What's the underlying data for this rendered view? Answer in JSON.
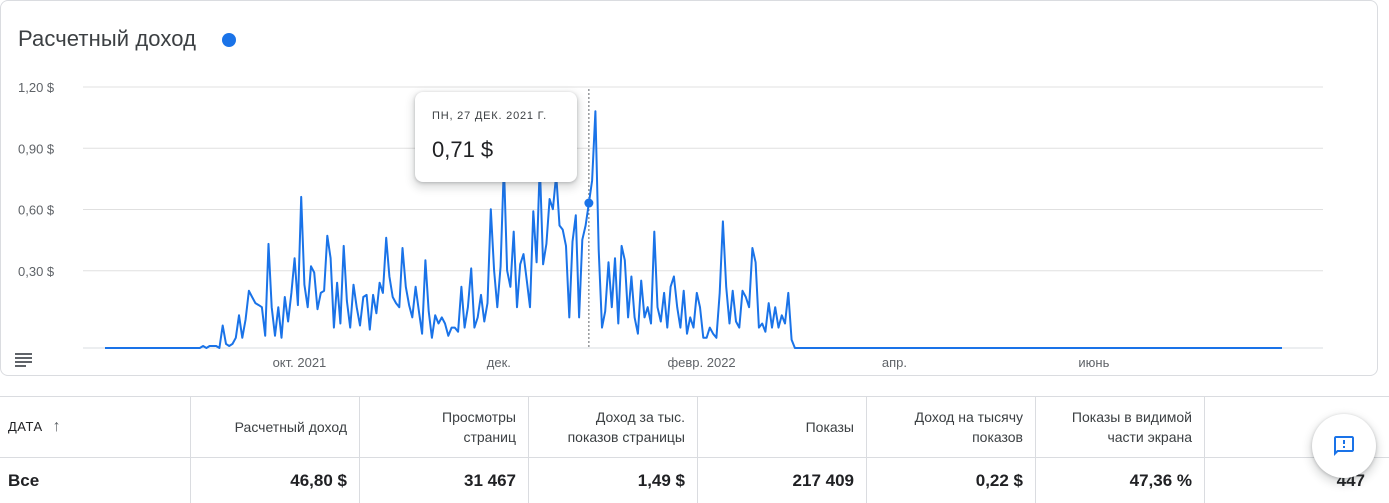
{
  "card": {
    "title": "Расчетный доход",
    "series_color": "#1a73e8",
    "menu_icon": "list-icon"
  },
  "tooltip": {
    "date": "ПН, 27 ДЕК. 2021 Г.",
    "value": "0,71 $"
  },
  "chart_data": {
    "type": "line",
    "title": "",
    "xlabel": "",
    "ylabel": "",
    "ylim": [
      0,
      1.2
    ],
    "xlim": [
      "2021-08-01",
      "2022-07-27"
    ],
    "y_ticks": [
      "1,20 $",
      "0,90 $",
      "0,60 $",
      "0,30 $"
    ],
    "y_tick_values": [
      1.2,
      0.9,
      0.6,
      0.3
    ],
    "x_ticks": [
      {
        "label": "окт. 2021",
        "date": "2021-10-01"
      },
      {
        "label": "дек.",
        "date": "2021-12-01"
      },
      {
        "label": "февр. 2022",
        "date": "2022-02-01"
      },
      {
        "label": "апр.",
        "date": "2022-04-01"
      },
      {
        "label": "июнь",
        "date": "2022-06-01"
      }
    ],
    "grid": true,
    "highlight": {
      "date": "2021-12-27",
      "value": 0.71
    },
    "series": [
      {
        "color": "#1a73e8",
        "points": [
          [
            "2021-08-01",
            0
          ],
          [
            "2021-08-30",
            0
          ],
          [
            "2021-08-31",
            0.01
          ],
          [
            "2021-09-01",
            0
          ],
          [
            "2021-09-02",
            0.01
          ],
          [
            "2021-09-04",
            0.01
          ],
          [
            "2021-09-05",
            0
          ],
          [
            "2021-09-06",
            0.11
          ],
          [
            "2021-09-07",
            0.02
          ],
          [
            "2021-09-08",
            0.01
          ],
          [
            "2021-09-09",
            0.02
          ],
          [
            "2021-09-10",
            0.05
          ],
          [
            "2021-09-11",
            0.16
          ],
          [
            "2021-09-12",
            0.05
          ],
          [
            "2021-09-13",
            0.14
          ],
          [
            "2021-09-14",
            0.28
          ],
          [
            "2021-09-15",
            0.25
          ],
          [
            "2021-09-16",
            0.22
          ],
          [
            "2021-09-17",
            0.21
          ],
          [
            "2021-09-18",
            0.2
          ],
          [
            "2021-09-19",
            0.06
          ],
          [
            "2021-09-20",
            0.51
          ],
          [
            "2021-09-21",
            0.2
          ],
          [
            "2021-09-22",
            0.06
          ],
          [
            "2021-09-23",
            0.2
          ],
          [
            "2021-09-24",
            0.05
          ],
          [
            "2021-09-25",
            0.25
          ],
          [
            "2021-09-26",
            0.13
          ],
          [
            "2021-09-27",
            0.27
          ],
          [
            "2021-09-28",
            0.44
          ],
          [
            "2021-09-29",
            0.21
          ],
          [
            "2021-09-30",
            0.74
          ],
          [
            "2021-10-01",
            0.31
          ],
          [
            "2021-10-02",
            0.2
          ],
          [
            "2021-10-03",
            0.4
          ],
          [
            "2021-10-04",
            0.37
          ],
          [
            "2021-10-05",
            0.19
          ],
          [
            "2021-10-06",
            0.27
          ],
          [
            "2021-10-07",
            0.28
          ],
          [
            "2021-10-08",
            0.55
          ],
          [
            "2021-10-09",
            0.44
          ],
          [
            "2021-10-10",
            0.1
          ],
          [
            "2021-10-11",
            0.32
          ],
          [
            "2021-10-12",
            0.12
          ],
          [
            "2021-10-13",
            0.5
          ],
          [
            "2021-10-14",
            0.23
          ],
          [
            "2021-10-15",
            0.1
          ],
          [
            "2021-10-16",
            0.31
          ],
          [
            "2021-10-17",
            0.2
          ],
          [
            "2021-10-18",
            0.11
          ],
          [
            "2021-10-19",
            0.25
          ],
          [
            "2021-10-20",
            0.26
          ],
          [
            "2021-10-21",
            0.09
          ],
          [
            "2021-10-22",
            0.26
          ],
          [
            "2021-10-23",
            0.17
          ],
          [
            "2021-10-24",
            0.32
          ],
          [
            "2021-10-25",
            0.27
          ],
          [
            "2021-10-26",
            0.54
          ],
          [
            "2021-10-27",
            0.35
          ],
          [
            "2021-10-28",
            0.25
          ],
          [
            "2021-10-29",
            0.22
          ],
          [
            "2021-10-30",
            0.2
          ],
          [
            "2021-10-31",
            0.49
          ],
          [
            "2021-11-01",
            0.3
          ],
          [
            "2021-11-02",
            0.21
          ],
          [
            "2021-11-03",
            0.15
          ],
          [
            "2021-11-04",
            0.3
          ],
          [
            "2021-11-05",
            0.18
          ],
          [
            "2021-11-06",
            0.07
          ],
          [
            "2021-11-07",
            0.43
          ],
          [
            "2021-11-08",
            0.18
          ],
          [
            "2021-11-09",
            0.05
          ],
          [
            "2021-11-10",
            0.16
          ],
          [
            "2021-11-11",
            0.12
          ],
          [
            "2021-11-12",
            0.15
          ],
          [
            "2021-11-13",
            0.12
          ],
          [
            "2021-11-14",
            0.06
          ],
          [
            "2021-11-15",
            0.1
          ],
          [
            "2021-11-16",
            0.1
          ],
          [
            "2021-11-17",
            0.08
          ],
          [
            "2021-11-18",
            0.3
          ],
          [
            "2021-11-19",
            0.1
          ],
          [
            "2021-11-20",
            0.2
          ],
          [
            "2021-11-21",
            0.39
          ],
          [
            "2021-11-22",
            0.1
          ],
          [
            "2021-11-23",
            0.15
          ],
          [
            "2021-11-24",
            0.26
          ],
          [
            "2021-11-25",
            0.13
          ],
          [
            "2021-11-26",
            0.22
          ],
          [
            "2021-11-27",
            0.68
          ],
          [
            "2021-11-28",
            0.38
          ],
          [
            "2021-11-29",
            0.2
          ],
          [
            "2021-11-30",
            0.4
          ],
          [
            "2021-12-01",
            0.9
          ],
          [
            "2021-12-02",
            0.38
          ],
          [
            "2021-12-03",
            0.3
          ],
          [
            "2021-12-04",
            0.57
          ],
          [
            "2021-12-05",
            0.2
          ],
          [
            "2021-12-06",
            0.41
          ],
          [
            "2021-12-07",
            0.46
          ],
          [
            "2021-12-08",
            0.33
          ],
          [
            "2021-12-09",
            0.2
          ],
          [
            "2021-12-10",
            0.67
          ],
          [
            "2021-12-11",
            0.42
          ],
          [
            "2021-12-12",
            0.9
          ],
          [
            "2021-12-13",
            0.41
          ],
          [
            "2021-12-14",
            0.51
          ],
          [
            "2021-12-15",
            0.73
          ],
          [
            "2021-12-16",
            0.68
          ],
          [
            "2021-12-17",
            0.85
          ],
          [
            "2021-12-18",
            0.6
          ],
          [
            "2021-12-19",
            0.58
          ],
          [
            "2021-12-20",
            0.5
          ],
          [
            "2021-12-21",
            0.15
          ],
          [
            "2021-12-22",
            0.52
          ],
          [
            "2021-12-23",
            0.65
          ],
          [
            "2021-12-24",
            0.15
          ],
          [
            "2021-12-25",
            0.53
          ],
          [
            "2021-12-26",
            0.6
          ],
          [
            "2021-12-27",
            0.71
          ],
          [
            "2021-12-28",
            0.82
          ],
          [
            "2021-12-29",
            1.16
          ],
          [
            "2021-12-30",
            0.48
          ],
          [
            "2021-12-31",
            0.1
          ],
          [
            "2022-01-01",
            0.18
          ],
          [
            "2022-01-02",
            0.42
          ],
          [
            "2022-01-03",
            0.2
          ],
          [
            "2022-01-04",
            0.44
          ],
          [
            "2022-01-05",
            0.12
          ],
          [
            "2022-01-06",
            0.5
          ],
          [
            "2022-01-07",
            0.43
          ],
          [
            "2022-01-08",
            0.15
          ],
          [
            "2022-01-09",
            0.35
          ],
          [
            "2022-01-10",
            0.15
          ],
          [
            "2022-01-11",
            0.07
          ],
          [
            "2022-01-12",
            0.33
          ],
          [
            "2022-01-13",
            0.15
          ],
          [
            "2022-01-14",
            0.2
          ],
          [
            "2022-01-15",
            0.12
          ],
          [
            "2022-01-16",
            0.57
          ],
          [
            "2022-01-17",
            0.2
          ],
          [
            "2022-01-18",
            0.13
          ],
          [
            "2022-01-19",
            0.27
          ],
          [
            "2022-01-20",
            0.1
          ],
          [
            "2022-01-21",
            0.3
          ],
          [
            "2022-01-22",
            0.35
          ],
          [
            "2022-01-23",
            0.2
          ],
          [
            "2022-01-24",
            0.1
          ],
          [
            "2022-01-25",
            0.28
          ],
          [
            "2022-01-26",
            0.07
          ],
          [
            "2022-01-27",
            0.15
          ],
          [
            "2022-01-28",
            0.1
          ],
          [
            "2022-01-29",
            0.27
          ],
          [
            "2022-01-30",
            0.2
          ],
          [
            "2022-01-31",
            0.05
          ],
          [
            "2022-02-01",
            0.05
          ],
          [
            "2022-02-02",
            0.1
          ],
          [
            "2022-02-03",
            0.07
          ],
          [
            "2022-02-04",
            0.05
          ],
          [
            "2022-02-05",
            0.27
          ],
          [
            "2022-02-06",
            0.62
          ],
          [
            "2022-02-07",
            0.3
          ],
          [
            "2022-02-08",
            0.12
          ],
          [
            "2022-02-09",
            0.28
          ],
          [
            "2022-02-10",
            0.13
          ],
          [
            "2022-02-11",
            0.1
          ],
          [
            "2022-02-12",
            0.28
          ],
          [
            "2022-02-13",
            0.25
          ],
          [
            "2022-02-14",
            0.2
          ],
          [
            "2022-02-15",
            0.49
          ],
          [
            "2022-02-16",
            0.42
          ],
          [
            "2022-02-17",
            0.1
          ],
          [
            "2022-02-18",
            0.12
          ],
          [
            "2022-02-19",
            0.08
          ],
          [
            "2022-02-20",
            0.22
          ],
          [
            "2022-02-21",
            0.1
          ],
          [
            "2022-02-22",
            0.2
          ],
          [
            "2022-02-23",
            0.1
          ],
          [
            "2022-02-24",
            0.16
          ],
          [
            "2022-02-25",
            0.12
          ],
          [
            "2022-02-26",
            0.27
          ],
          [
            "2022-02-27",
            0.04
          ],
          [
            "2022-02-28",
            0.0
          ],
          [
            "2022-03-01",
            0.0
          ],
          [
            "2022-07-27",
            0
          ]
        ]
      }
    ]
  },
  "table": {
    "columns": [
      {
        "label": "ДАТА"
      },
      {
        "label": "Расчетный доход"
      },
      {
        "label": "Просмотры страниц"
      },
      {
        "label": "Доход за тыс. показов страницы"
      },
      {
        "label": "Показы"
      },
      {
        "label": "Доход на тысячу показов"
      },
      {
        "label": "Показы в видимой части экрана"
      },
      {
        "label": ""
      }
    ],
    "sort_icon": "arrow-up-icon",
    "row": [
      "Все",
      "46,80 $",
      "31 467",
      "1,49 $",
      "217 409",
      "0,22 $",
      "47,36 %",
      "447"
    ]
  },
  "fab": {
    "icon": "feedback-icon",
    "color": "#1a73e8"
  }
}
